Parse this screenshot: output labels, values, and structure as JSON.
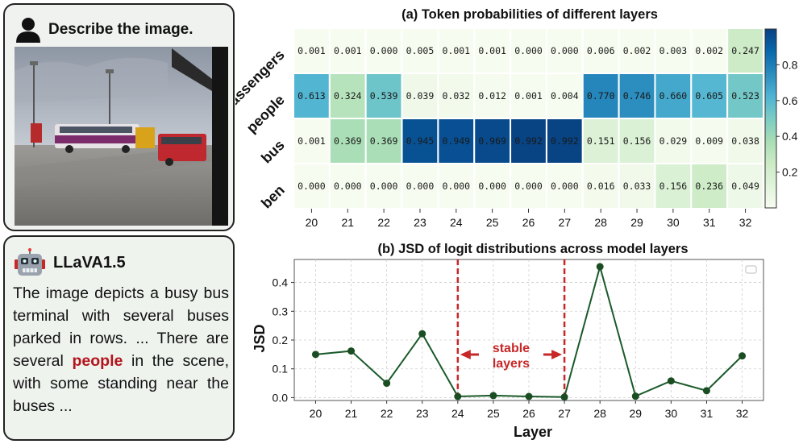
{
  "user_panel": {
    "title": "Describe the image.",
    "icon": "person-icon"
  },
  "bot_panel": {
    "title": "LLaVA1.5",
    "icon": "robot-icon",
    "text_before": "The image depicts a busy bus terminal with several buses parked in rows. ... There are several ",
    "highlight": "people",
    "text_after": " in the scene, with some standing near the buses ..."
  },
  "colors": {
    "highlight": "#b3141b",
    "line": "#1a5a2a",
    "marker": "#1a4d22",
    "annotation": "#c62828"
  },
  "chart_data": [
    {
      "type": "heatmap",
      "title": "(a) Token probabilities of different layers",
      "x": [
        "20",
        "21",
        "22",
        "23",
        "24",
        "25",
        "26",
        "27",
        "28",
        "29",
        "30",
        "31",
        "32"
      ],
      "rows": [
        "passengers",
        "people",
        "bus",
        "ben"
      ],
      "values": [
        [
          0.001,
          0.001,
          0.0,
          0.005,
          0.001,
          0.001,
          0.0,
          0.0,
          0.006,
          0.002,
          0.003,
          0.002,
          0.247
        ],
        [
          0.613,
          0.324,
          0.539,
          0.039,
          0.032,
          0.012,
          0.001,
          0.004,
          0.77,
          0.746,
          0.66,
          0.605,
          0.523
        ],
        [
          0.001,
          0.369,
          0.369,
          0.945,
          0.949,
          0.969,
          0.992,
          0.992,
          0.151,
          0.156,
          0.029,
          0.009,
          0.038
        ],
        [
          0.0,
          0.0,
          0.0,
          0.0,
          0.0,
          0.0,
          0.0,
          0.0,
          0.016,
          0.033,
          0.156,
          0.236,
          0.049
        ]
      ],
      "labels": [
        [
          "0.001",
          "0.001",
          "0.000",
          "0.005",
          "0.001",
          "0.001",
          "0.000",
          "0.000",
          "0.006",
          "0.002",
          "0.003",
          "0.002",
          "0.247"
        ],
        [
          "0.613",
          "0.324",
          "0.539",
          "0.039",
          "0.032",
          "0.012",
          "0.001",
          "0.004",
          "0.770",
          "0.746",
          "0.660",
          "0.605",
          "0.523"
        ],
        [
          "0.001",
          "0.369",
          "0.369",
          "0.945",
          "0.949",
          "0.969",
          "0.992",
          "0.992",
          "0.151",
          "0.156",
          "0.029",
          "0.009",
          "0.038"
        ],
        [
          "0.000",
          "0.000",
          "0.000",
          "0.000",
          "0.000",
          "0.000",
          "0.000",
          "0.000",
          "0.016",
          "0.033",
          "0.156",
          "0.236",
          "0.049"
        ]
      ],
      "colorbar": {
        "range": [
          0,
          1
        ],
        "ticks": [
          0.2,
          0.4,
          0.6,
          0.8
        ],
        "tick_labels": [
          "0.2",
          "0.4",
          "0.6",
          "0.8"
        ]
      }
    },
    {
      "type": "line",
      "title": "(b) JSD of logit distributions across model layers",
      "xlabel": "Layer",
      "ylabel": "JSD",
      "x": [
        20,
        21,
        22,
        23,
        24,
        25,
        26,
        27,
        28,
        29,
        30,
        31,
        32
      ],
      "x_labels": [
        "20",
        "21",
        "22",
        "23",
        "24",
        "25",
        "26",
        "27",
        "28",
        "29",
        "30",
        "31",
        "32"
      ],
      "values": [
        0.15,
        0.162,
        0.05,
        0.222,
        0.004,
        0.007,
        0.004,
        0.002,
        0.455,
        0.005,
        0.058,
        0.024,
        0.145
      ],
      "ylim": [
        -0.01,
        0.48
      ],
      "yticks": [
        0.0,
        0.1,
        0.2,
        0.3,
        0.4
      ],
      "ytick_labels": [
        "0.0",
        "0.1",
        "0.2",
        "0.3",
        "0.4"
      ],
      "grid": true,
      "vlines": [
        24,
        27
      ],
      "annotation": {
        "line1": "stable",
        "line2": "layers",
        "from": 24,
        "to": 27
      }
    }
  ]
}
